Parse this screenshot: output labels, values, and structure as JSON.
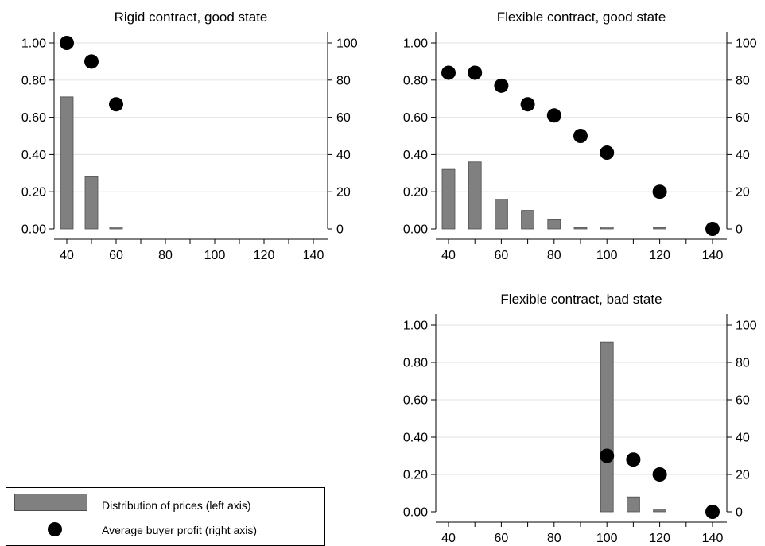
{
  "chart_data": [
    {
      "type": "bar",
      "title": "Rigid contract, good state",
      "xlim": [
        35,
        145
      ],
      "x_ticks": [
        "40",
        "60",
        "80",
        "100",
        "120",
        "140"
      ],
      "ylim_left": [
        0,
        1
      ],
      "y_ticks_left": [
        "0.00",
        "0.20",
        "0.40",
        "0.60",
        "0.80",
        "1.00"
      ],
      "ylim_right": [
        0,
        100
      ],
      "y_ticks_right": [
        "0",
        "20",
        "40",
        "60",
        "80",
        "100"
      ],
      "series": [
        {
          "name": "Distribution of prices (left axis)",
          "axis": "left",
          "kind": "bar",
          "x": [
            40,
            50,
            60
          ],
          "values": [
            0.71,
            0.28,
            0.01
          ]
        },
        {
          "name": "Average buyer profit (right axis)",
          "axis": "right",
          "kind": "scatter",
          "x": [
            40,
            50,
            60
          ],
          "values": [
            100,
            90,
            67
          ]
        }
      ]
    },
    {
      "type": "bar",
      "title": "Flexible contract, good state",
      "xlim": [
        35,
        145
      ],
      "x_ticks": [
        "40",
        "60",
        "80",
        "100",
        "120",
        "140"
      ],
      "ylim_left": [
        0,
        1
      ],
      "y_ticks_left": [
        "0.00",
        "0.20",
        "0.40",
        "0.60",
        "0.80",
        "1.00"
      ],
      "ylim_right": [
        0,
        100
      ],
      "y_ticks_right": [
        "0",
        "20",
        "40",
        "60",
        "80",
        "100"
      ],
      "series": [
        {
          "name": "Distribution of prices (left axis)",
          "axis": "left",
          "kind": "bar",
          "x": [
            40,
            50,
            60,
            70,
            80,
            90,
            100,
            120
          ],
          "values": [
            0.32,
            0.36,
            0.16,
            0.1,
            0.05,
            0.006,
            0.01,
            0.004
          ]
        },
        {
          "name": "Average buyer profit (right axis)",
          "axis": "right",
          "kind": "scatter",
          "x": [
            40,
            50,
            60,
            70,
            80,
            90,
            100,
            120,
            140
          ],
          "values": [
            84,
            84,
            77,
            67,
            61,
            50,
            41,
            20,
            0
          ]
        }
      ]
    },
    {
      "type": "bar",
      "title": "Flexible contract, bad state",
      "xlim": [
        35,
        145
      ],
      "x_ticks": [
        "40",
        "60",
        "80",
        "100",
        "120",
        "140"
      ],
      "ylim_left": [
        0,
        1
      ],
      "y_ticks_left": [
        "0.00",
        "0.20",
        "0.40",
        "0.60",
        "0.80",
        "1.00"
      ],
      "ylim_right": [
        0,
        100
      ],
      "y_ticks_right": [
        "0",
        "20",
        "40",
        "60",
        "80",
        "100"
      ],
      "series": [
        {
          "name": "Distribution of prices (left axis)",
          "axis": "left",
          "kind": "bar",
          "x": [
            100,
            110,
            120
          ],
          "values": [
            0.91,
            0.08,
            0.01
          ]
        },
        {
          "name": "Average buyer profit (right axis)",
          "axis": "right",
          "kind": "scatter",
          "x": [
            100,
            110,
            120,
            140
          ],
          "values": [
            30,
            28,
            20,
            0
          ]
        }
      ]
    }
  ],
  "legend": {
    "bar_label": "Distribution of prices (left axis)",
    "dot_label": "Average buyer profit (right axis)"
  },
  "colors": {
    "bar_fill": "#808080",
    "bar_edge": "#4d4d4d",
    "dot": "#000000",
    "grid": "#e6e6e6"
  }
}
